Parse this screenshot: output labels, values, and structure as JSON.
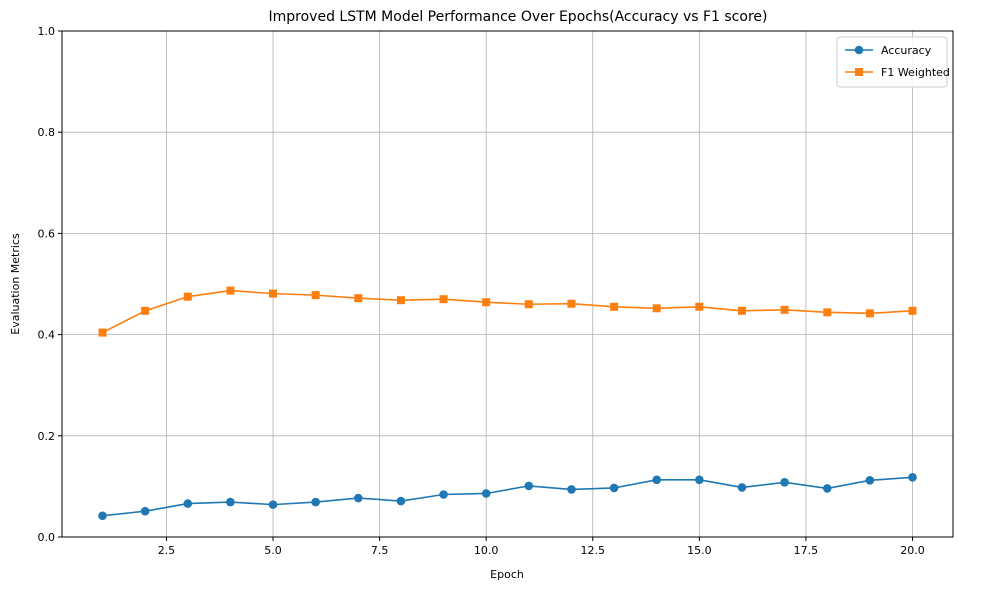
{
  "chart_data": {
    "type": "line",
    "title": "Improved LSTM Model Performance Over Epochs(Accuracy vs F1 score)",
    "xlabel": "Epoch",
    "ylabel": "Evaluation Metrics",
    "xlim": [
      0.05,
      20.95
    ],
    "ylim": [
      0,
      1
    ],
    "xticks": [
      2.5,
      5.0,
      7.5,
      10.0,
      12.5,
      15.0,
      17.5,
      20.0
    ],
    "xtick_labels": [
      "2.5",
      "5.0",
      "7.5",
      "10.0",
      "12.5",
      "15.0",
      "17.5",
      "20.0"
    ],
    "yticks": [
      0.0,
      0.2,
      0.4,
      0.6,
      0.8,
      1.0
    ],
    "ytick_labels": [
      "0.0",
      "0.2",
      "0.4",
      "0.6",
      "0.8",
      "1.0"
    ],
    "grid": true,
    "legend_position": "top-right",
    "x": [
      1,
      2,
      3,
      4,
      5,
      6,
      7,
      8,
      9,
      10,
      11,
      12,
      13,
      14,
      15,
      16,
      17,
      18,
      19,
      20
    ],
    "series": [
      {
        "name": "Accuracy",
        "color": "#1f77b4",
        "marker": "circle",
        "values": [
          0.042,
          0.051,
          0.066,
          0.069,
          0.064,
          0.069,
          0.077,
          0.071,
          0.084,
          0.086,
          0.101,
          0.094,
          0.097,
          0.113,
          0.113,
          0.098,
          0.108,
          0.096,
          0.112,
          0.118
        ]
      },
      {
        "name": "F1 Weighted",
        "color": "#ff7f0e",
        "marker": "square",
        "values": [
          0.404,
          0.447,
          0.475,
          0.487,
          0.481,
          0.478,
          0.472,
          0.468,
          0.47,
          0.464,
          0.46,
          0.461,
          0.455,
          0.452,
          0.455,
          0.447,
          0.449,
          0.444,
          0.442,
          0.447
        ]
      }
    ]
  }
}
